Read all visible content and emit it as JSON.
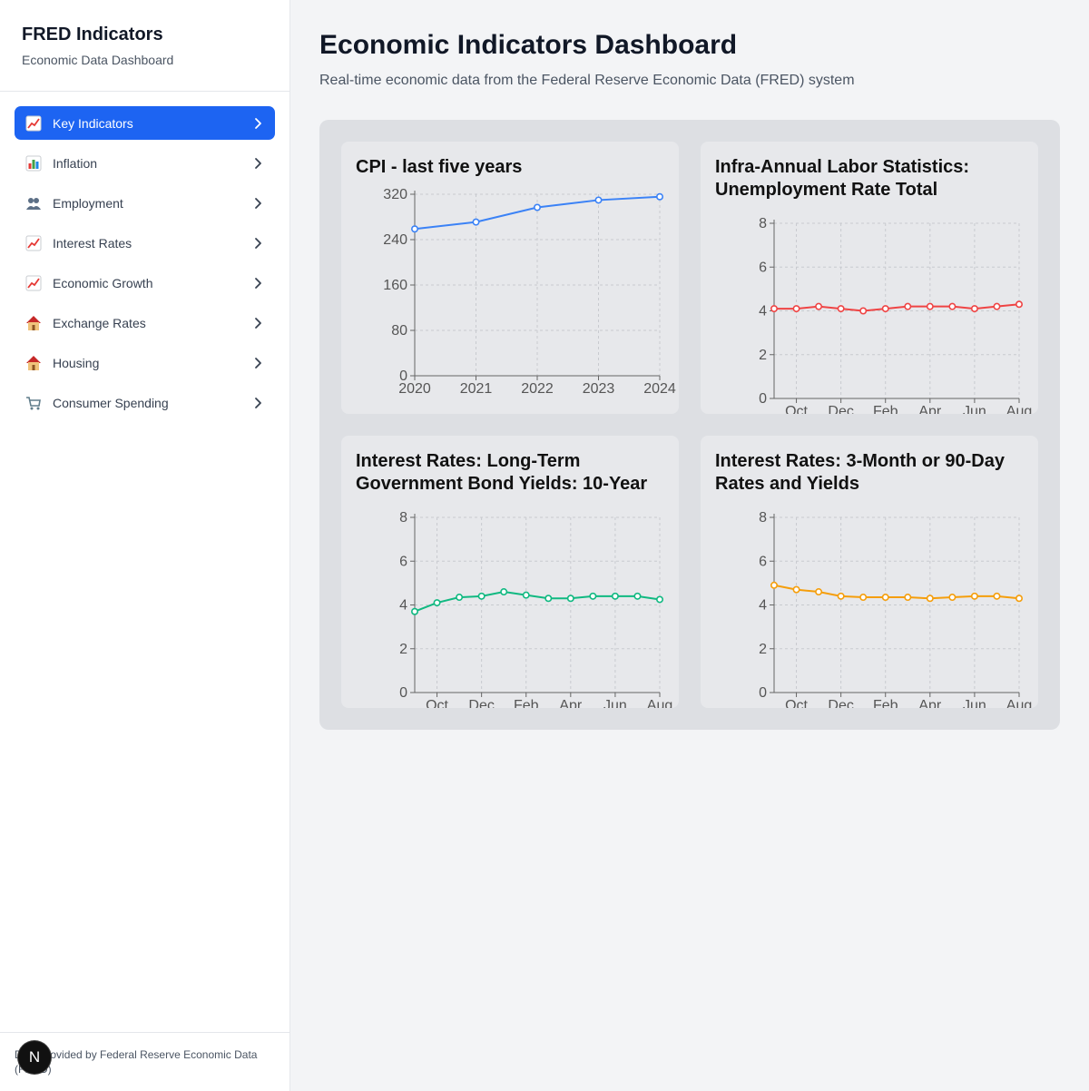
{
  "sidebar": {
    "title": "FRED Indicators",
    "subtitle": "Economic Data Dashboard",
    "items": [
      {
        "label": "Key Indicators",
        "icon": "chart-increasing-icon",
        "active": true
      },
      {
        "label": "Inflation",
        "icon": "bar-chart-icon",
        "active": false
      },
      {
        "label": "Employment",
        "icon": "people-icon",
        "active": false
      },
      {
        "label": "Interest Rates",
        "icon": "chart-increasing-icon",
        "active": false
      },
      {
        "label": "Economic Growth",
        "icon": "chart-increasing-icon",
        "active": false
      },
      {
        "label": "Exchange Rates",
        "icon": "house-icon",
        "active": false
      },
      {
        "label": "Housing",
        "icon": "house-icon",
        "active": false
      },
      {
        "label": "Consumer Spending",
        "icon": "shopping-cart-icon",
        "active": false
      }
    ],
    "footer": "Data provided by Federal Reserve Economic Data (FRED)"
  },
  "main": {
    "title": "Economic Indicators Dashboard",
    "subtitle": "Real-time economic data from the Federal Reserve Economic Data (FRED) system"
  },
  "badge": {
    "label": "N"
  },
  "colors": {
    "accent": "#1d64f2",
    "blue": "#3b82f6",
    "red": "#ef4444",
    "green": "#10b981",
    "amber": "#f59e0b"
  },
  "chart_data": [
    {
      "type": "line",
      "title": "CPI - last five years",
      "x": [
        "2020",
        "2021",
        "2022",
        "2023",
        "2024"
      ],
      "values": [
        258.8,
        271.0,
        296.8,
        309.7,
        315.6
      ],
      "ylim": [
        0,
        320
      ],
      "yticks": [
        0,
        80,
        160,
        240,
        320
      ],
      "xticks": [
        "2020",
        "2021",
        "2022",
        "2023",
        "2024"
      ],
      "color": "#3b82f6",
      "grid": true
    },
    {
      "type": "line",
      "title": "Infra-Annual Labor Statistics: Unemployment Rate Total",
      "x": [
        "2023-09",
        "2023-10",
        "2023-11",
        "2023-12",
        "2024-01",
        "2024-02",
        "2024-03",
        "2024-04",
        "2024-05",
        "2024-06",
        "2024-07",
        "2024-08"
      ],
      "values": [
        4.1,
        4.1,
        4.2,
        4.1,
        4.0,
        4.1,
        4.2,
        4.2,
        4.2,
        4.1,
        4.2,
        4.3
      ],
      "ylim": [
        0,
        8
      ],
      "yticks": [
        0,
        2,
        4,
        6,
        8
      ],
      "xticks": [
        "Oct",
        "Dec",
        "Feb",
        "Apr",
        "Jun",
        "Aug"
      ],
      "color": "#ef4444",
      "grid": true
    },
    {
      "type": "line",
      "title": "Interest Rates: Long-Term Government Bond Yields: 10-Year",
      "x": [
        "2023-09",
        "2023-10",
        "2023-11",
        "2023-12",
        "2024-01",
        "2024-02",
        "2024-03",
        "2024-04",
        "2024-05",
        "2024-06",
        "2024-07",
        "2024-08"
      ],
      "values": [
        3.7,
        4.1,
        4.35,
        4.4,
        4.6,
        4.45,
        4.3,
        4.3,
        4.4,
        4.4,
        4.4,
        4.25
      ],
      "ylim": [
        0,
        8
      ],
      "yticks": [
        0,
        2,
        4,
        6,
        8
      ],
      "xticks": [
        "Oct",
        "Dec",
        "Feb",
        "Apr",
        "Jun",
        "Aug"
      ],
      "color": "#10b981",
      "grid": true
    },
    {
      "type": "line",
      "title": "Interest Rates: 3-Month or 90-Day Rates and Yields",
      "x": [
        "2023-09",
        "2023-10",
        "2023-11",
        "2023-12",
        "2024-01",
        "2024-02",
        "2024-03",
        "2024-04",
        "2024-05",
        "2024-06",
        "2024-07",
        "2024-08"
      ],
      "values": [
        4.9,
        4.7,
        4.6,
        4.4,
        4.35,
        4.35,
        4.35,
        4.3,
        4.35,
        4.4,
        4.4,
        4.3
      ],
      "ylim": [
        0,
        8
      ],
      "yticks": [
        0,
        2,
        4,
        6,
        8
      ],
      "xticks": [
        "Oct",
        "Dec",
        "Feb",
        "Apr",
        "Jun",
        "Aug"
      ],
      "color": "#f59e0b",
      "grid": true
    }
  ]
}
